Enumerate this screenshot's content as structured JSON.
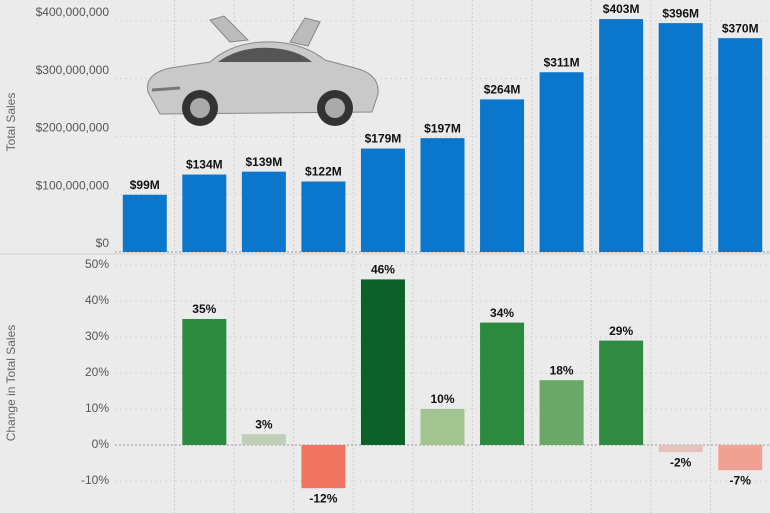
{
  "chart_data": [
    {
      "type": "bar",
      "y_label": "Total Sales",
      "values": [
        99000000,
        134000000,
        139000000,
        122000000,
        179000000,
        197000000,
        264000000,
        311000000,
        403000000,
        396000000,
        370000000
      ],
      "value_labels": [
        "$99M",
        "$134M",
        "$139M",
        "$122M",
        "$179M",
        "$197M",
        "$264M",
        "$311M",
        "$403M",
        "$396M",
        "$370M"
      ],
      "color": "#0b77cc",
      "ylim": [
        0,
        436000000
      ],
      "yticks": [
        {
          "value": 0,
          "label": "$0"
        },
        {
          "value": 100000000,
          "label": "$100,000,000"
        },
        {
          "value": 200000000,
          "label": "$200,000,000"
        },
        {
          "value": 300000000,
          "label": "$300,000,000"
        },
        {
          "value": 400000000,
          "label": "$400,000,000"
        }
      ]
    },
    {
      "type": "bar",
      "y_label": "Change in Total Sales",
      "values": [
        null,
        35,
        3,
        -12,
        46,
        10,
        34,
        18,
        29,
        -2,
        -7
      ],
      "value_labels": [
        null,
        "35%",
        "3%",
        "-12%",
        "46%",
        "10%",
        "34%",
        "18%",
        "29%",
        "-2%",
        "-7%"
      ],
      "colors": [
        null,
        "#2b8a3e",
        "#bfcfb5",
        "#f07560",
        "#0b6129",
        "#a2c490",
        "#2b8a3e",
        "#6aa866",
        "#2e8b41",
        "#e3c2bc",
        "#f1a194"
      ],
      "ylim": [
        -18.9,
        52.5
      ],
      "yticks": [
        {
          "value": -10,
          "label": "-10%"
        },
        {
          "value": 0,
          "label": "0%"
        },
        {
          "value": 10,
          "label": "10%"
        },
        {
          "value": 20,
          "label": "20%"
        },
        {
          "value": 30,
          "label": "30%"
        },
        {
          "value": 40,
          "label": "40%"
        },
        {
          "value": 50,
          "label": "50%"
        }
      ]
    }
  ]
}
